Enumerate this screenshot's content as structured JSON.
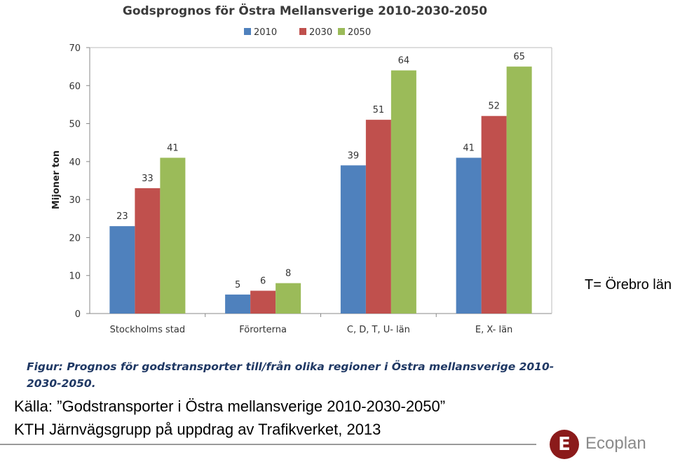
{
  "chart_data": {
    "type": "bar",
    "title": "Godsprognos för Östra Mellansverige 2010-2030-2050",
    "ylabel": "Mijoner ton",
    "xlabel": "",
    "ylim": [
      0,
      70
    ],
    "yticks": [
      0,
      10,
      20,
      30,
      40,
      50,
      60,
      70
    ],
    "grid": false,
    "legend_position": "top-center",
    "categories": [
      "Stockholms stad",
      "Förorterna",
      "C, D, T, U- län",
      "E, X- län"
    ],
    "series": [
      {
        "name": "2010",
        "color": "#4f81bd",
        "values": [
          23,
          5,
          39,
          41
        ]
      },
      {
        "name": "2030",
        "color": "#c0504d",
        "values": [
          33,
          6,
          51,
          52
        ]
      },
      {
        "name": "2050",
        "color": "#9bbb59",
        "values": [
          41,
          8,
          64,
          65
        ]
      }
    ]
  },
  "caption": "Figur: Prognos för godstransporter till/från olika regioner i Östra mellansverige 2010-2030-2050.",
  "side_note": "T= Örebro län",
  "source_line_1": "Källa: ”Godstransporter i Östra mellansverige 2010-2030-2050”",
  "source_line_2": "KTH Järnvägsgrupp på uppdrag av Trafikverket, 2013",
  "logo": {
    "mark": "E",
    "name": "Ecoplan",
    "color": "#8b1a1a"
  }
}
